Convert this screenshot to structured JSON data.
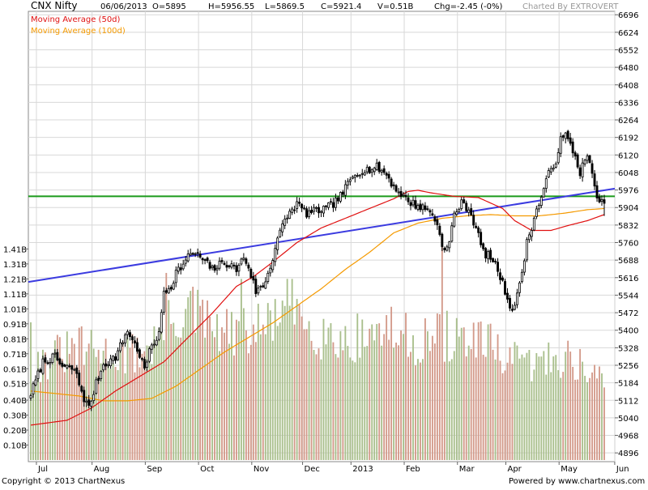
{
  "header": {
    "symbol": "CNX Nifty",
    "date": "06/06/2013",
    "open": "O=5895",
    "high": "H=5956.55",
    "low": "L=5869.5",
    "close": "C=5921.4",
    "volume": "V=0.51B",
    "change": "Chg=-2.45 (-0%)",
    "charted_by": "Charted By EXTROVERT"
  },
  "legend": [
    {
      "label": "Moving Average (50d)",
      "color": "#e01010"
    },
    {
      "label": "Moving Average (100d)",
      "color": "#f59a00"
    }
  ],
  "footer": {
    "copyright": "Copyright © 2013 ChartNexus",
    "powered_by": "Powered by www.chartnexus.com"
  },
  "colors": {
    "candle": "#000000",
    "volume_up": "#a9bf8c",
    "volume_down": "#d39a8a",
    "ma50": "#e01010",
    "ma100": "#f59a00",
    "trendline": "#3b3be0",
    "horizontal_line": "#1a9a1a",
    "grid": "#d8d8d8"
  },
  "chart_data": {
    "type": "candlestick",
    "price_axis": {
      "ticks": [
        4896,
        4968,
        5040,
        5112,
        5184,
        5256,
        5328,
        5400,
        5472,
        5544,
        5616,
        5688,
        5760,
        5832,
        5904,
        5976,
        6048,
        6120,
        6192,
        6264,
        6336,
        6408,
        6480,
        6552,
        6624,
        6696
      ],
      "range": [
        4860,
        6710
      ]
    },
    "volume_axis": {
      "ticks": [
        "0.10B",
        "0.20B",
        "0.30B",
        "0.40B",
        "0.51B",
        "0.61B",
        "0.71B",
        "0.81B",
        "0.91B",
        "1.01B",
        "1.11B",
        "1.21B",
        "1.31B",
        "1.41B"
      ],
      "range": [
        0,
        1.45
      ]
    },
    "x_axis": {
      "labels": [
        "Jul",
        "Aug",
        "Sep",
        "Oct",
        "Nov",
        "Dec",
        "2013",
        "Feb",
        "Mar",
        "Apr",
        "May",
        "Jun"
      ],
      "label_index": [
        4,
        27,
        49,
        71,
        93,
        114,
        134,
        156,
        178,
        198,
        220,
        243
      ]
    },
    "price_path": [
      [
        0,
        5140
      ],
      [
        5,
        5270
      ],
      [
        10,
        5290
      ],
      [
        13,
        5250
      ],
      [
        18,
        5240
      ],
      [
        22,
        5120
      ],
      [
        24,
        5080
      ],
      [
        27,
        5180
      ],
      [
        30,
        5260
      ],
      [
        35,
        5290
      ],
      [
        40,
        5400
      ],
      [
        43,
        5340
      ],
      [
        45,
        5300
      ],
      [
        47,
        5240
      ],
      [
        50,
        5340
      ],
      [
        53,
        5380
      ],
      [
        55,
        5560
      ],
      [
        58,
        5580
      ],
      [
        60,
        5640
      ],
      [
        64,
        5680
      ],
      [
        66,
        5720
      ],
      [
        70,
        5700
      ],
      [
        75,
        5650
      ],
      [
        80,
        5680
      ],
      [
        85,
        5650
      ],
      [
        88,
        5700
      ],
      [
        90,
        5660
      ],
      [
        93,
        5560
      ],
      [
        96,
        5580
      ],
      [
        99,
        5660
      ],
      [
        102,
        5780
      ],
      [
        106,
        5870
      ],
      [
        110,
        5920
      ],
      [
        114,
        5880
      ],
      [
        118,
        5890
      ],
      [
        122,
        5900
      ],
      [
        125,
        5920
      ],
      [
        128,
        5950
      ],
      [
        131,
        6000
      ],
      [
        134,
        6040
      ],
      [
        137,
        6060
      ],
      [
        140,
        6060
      ],
      [
        143,
        6070
      ],
      [
        147,
        6040
      ],
      [
        150,
        5990
      ],
      [
        153,
        5960
      ],
      [
        156,
        5930
      ],
      [
        160,
        5910
      ],
      [
        163,
        5900
      ],
      [
        166,
        5880
      ],
      [
        169,
        5800
      ],
      [
        171,
        5720
      ],
      [
        173,
        5760
      ],
      [
        175,
        5880
      ],
      [
        178,
        5920
      ],
      [
        181,
        5900
      ],
      [
        184,
        5820
      ],
      [
        187,
        5720
      ],
      [
        190,
        5700
      ],
      [
        193,
        5650
      ],
      [
        196,
        5560
      ],
      [
        199,
        5480
      ],
      [
        202,
        5580
      ],
      [
        205,
        5760
      ],
      [
        208,
        5860
      ],
      [
        211,
        5950
      ],
      [
        214,
        6040
      ],
      [
        217,
        6100
      ],
      [
        219,
        6180
      ],
      [
        221,
        6200
      ],
      [
        224,
        6140
      ],
      [
        227,
        6050
      ],
      [
        230,
        6120
      ],
      [
        233,
        5990
      ],
      [
        235,
        5930
      ],
      [
        237,
        5921
      ]
    ],
    "moving_average_50d": [
      [
        0,
        5010
      ],
      [
        15,
        5030
      ],
      [
        25,
        5080
      ],
      [
        35,
        5150
      ],
      [
        45,
        5210
      ],
      [
        55,
        5270
      ],
      [
        65,
        5370
      ],
      [
        75,
        5470
      ],
      [
        85,
        5580
      ],
      [
        92,
        5620
      ],
      [
        100,
        5680
      ],
      [
        110,
        5760
      ],
      [
        120,
        5820
      ],
      [
        130,
        5860
      ],
      [
        140,
        5900
      ],
      [
        150,
        5940
      ],
      [
        156,
        5970
      ],
      [
        160,
        5975
      ],
      [
        165,
        5965
      ],
      [
        175,
        5950
      ],
      [
        185,
        5945
      ],
      [
        195,
        5900
      ],
      [
        200,
        5850
      ],
      [
        207,
        5810
      ],
      [
        215,
        5810
      ],
      [
        222,
        5830
      ],
      [
        230,
        5850
      ],
      [
        237,
        5875
      ]
    ],
    "moving_average_100d": [
      [
        0,
        5150
      ],
      [
        10,
        5140
      ],
      [
        20,
        5130
      ],
      [
        30,
        5110
      ],
      [
        40,
        5110
      ],
      [
        50,
        5120
      ],
      [
        60,
        5170
      ],
      [
        70,
        5240
      ],
      [
        80,
        5310
      ],
      [
        90,
        5370
      ],
      [
        100,
        5430
      ],
      [
        110,
        5500
      ],
      [
        120,
        5570
      ],
      [
        130,
        5650
      ],
      [
        140,
        5720
      ],
      [
        150,
        5800
      ],
      [
        160,
        5840
      ],
      [
        170,
        5860
      ],
      [
        180,
        5870
      ],
      [
        190,
        5875
      ],
      [
        200,
        5870
      ],
      [
        210,
        5870
      ],
      [
        220,
        5880
      ],
      [
        230,
        5895
      ],
      [
        237,
        5900
      ]
    ],
    "volume_path": [
      [
        0,
        0.62
      ],
      [
        10,
        0.7
      ],
      [
        20,
        0.75
      ],
      [
        30,
        0.72
      ],
      [
        40,
        0.7
      ],
      [
        45,
        0.74
      ],
      [
        50,
        0.78
      ],
      [
        55,
        0.86
      ],
      [
        60,
        0.95
      ],
      [
        65,
        1.02
      ],
      [
        70,
        0.96
      ],
      [
        75,
        0.88
      ],
      [
        80,
        0.86
      ],
      [
        85,
        0.84
      ],
      [
        90,
        0.86
      ],
      [
        95,
        0.88
      ],
      [
        100,
        0.95
      ],
      [
        105,
        1.02
      ],
      [
        110,
        1.0
      ],
      [
        115,
        0.92
      ],
      [
        120,
        0.86
      ],
      [
        125,
        0.84
      ],
      [
        130,
        0.8
      ],
      [
        135,
        0.82
      ],
      [
        140,
        0.86
      ],
      [
        145,
        0.88
      ],
      [
        150,
        0.86
      ],
      [
        155,
        0.82
      ],
      [
        160,
        0.8
      ],
      [
        165,
        0.82
      ],
      [
        170,
        0.84
      ],
      [
        175,
        0.82
      ],
      [
        180,
        0.8
      ],
      [
        185,
        0.78
      ],
      [
        190,
        0.76
      ],
      [
        195,
        0.7
      ],
      [
        200,
        0.66
      ],
      [
        205,
        0.64
      ],
      [
        210,
        0.66
      ],
      [
        215,
        0.68
      ],
      [
        220,
        0.7
      ],
      [
        225,
        0.66
      ],
      [
        230,
        0.62
      ],
      [
        237,
        0.51
      ]
    ],
    "volume_spikes": [
      [
        0,
        0.92
      ],
      [
        56,
        1.25
      ],
      [
        87,
        1.21
      ],
      [
        108,
        1.21
      ],
      [
        170,
        1.45
      ],
      [
        193,
        0.84
      ]
    ],
    "trendline": [
      [
        0,
        5600
      ],
      [
        237,
        5975
      ]
    ],
    "horizontal_line": 5950,
    "candle_count": 238
  }
}
